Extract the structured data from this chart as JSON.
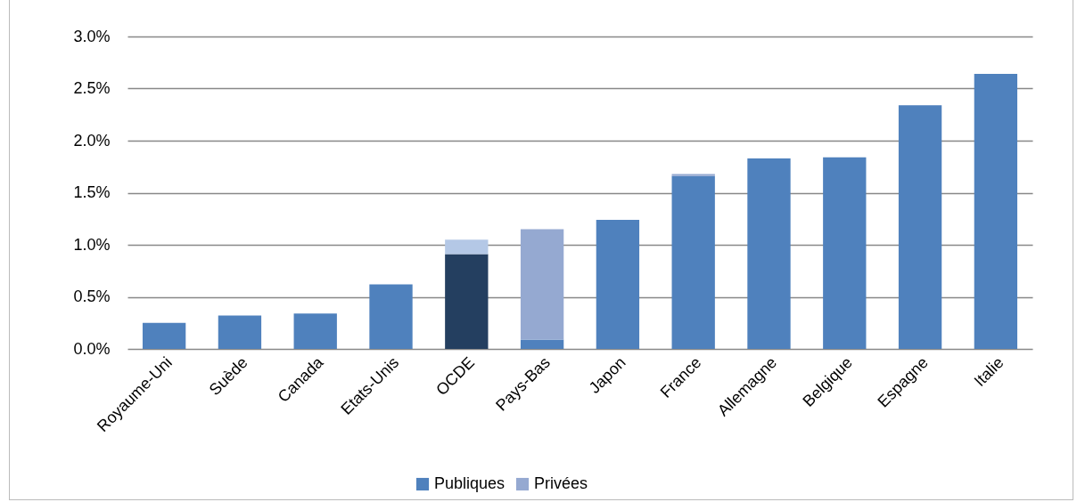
{
  "chart_data": {
    "type": "bar",
    "stacked": true,
    "categories": [
      "Royaume-Uni",
      "Suède",
      "Canada",
      "Etats-Unis",
      "OCDE",
      "Pays-Bas",
      "Japon",
      "France",
      "Allemagne",
      "Belgique",
      "Espagne",
      "Italie"
    ],
    "series": [
      {
        "name": "Publiques",
        "color": "#4f81bd",
        "colors": [
          "#4f81bd",
          "#4f81bd",
          "#4f81bd",
          "#4f81bd",
          "#243f60",
          "#4f81bd",
          "#4f81bd",
          "#4f81bd",
          "#4f81bd",
          "#4f81bd",
          "#4f81bd",
          "#4f81bd"
        ],
        "values": [
          0.25,
          0.32,
          0.34,
          0.62,
          0.91,
          0.09,
          1.24,
          1.66,
          1.83,
          1.84,
          2.34,
          2.64
        ]
      },
      {
        "name": "Privées",
        "color": "#95a9d1",
        "colors": [
          null,
          null,
          null,
          null,
          "#b4c8e6",
          "#95a9d1",
          null,
          "#95a9d1",
          null,
          null,
          null,
          null
        ],
        "values": [
          null,
          null,
          null,
          null,
          0.14,
          1.06,
          null,
          0.02,
          null,
          null,
          null,
          null
        ]
      }
    ],
    "ylim": [
      0,
      3
    ],
    "yticks": [
      {
        "value": 0,
        "label": "0.0%"
      },
      {
        "value": 0.5,
        "label": "0.5%"
      },
      {
        "value": 1,
        "label": "1.0%"
      },
      {
        "value": 1.5,
        "label": "1.5%"
      },
      {
        "value": 2,
        "label": "2.0%"
      },
      {
        "value": 2.5,
        "label": "2.5%"
      },
      {
        "value": 3,
        "label": "3.0%"
      }
    ],
    "grid": "y",
    "legend": "bottom"
  }
}
